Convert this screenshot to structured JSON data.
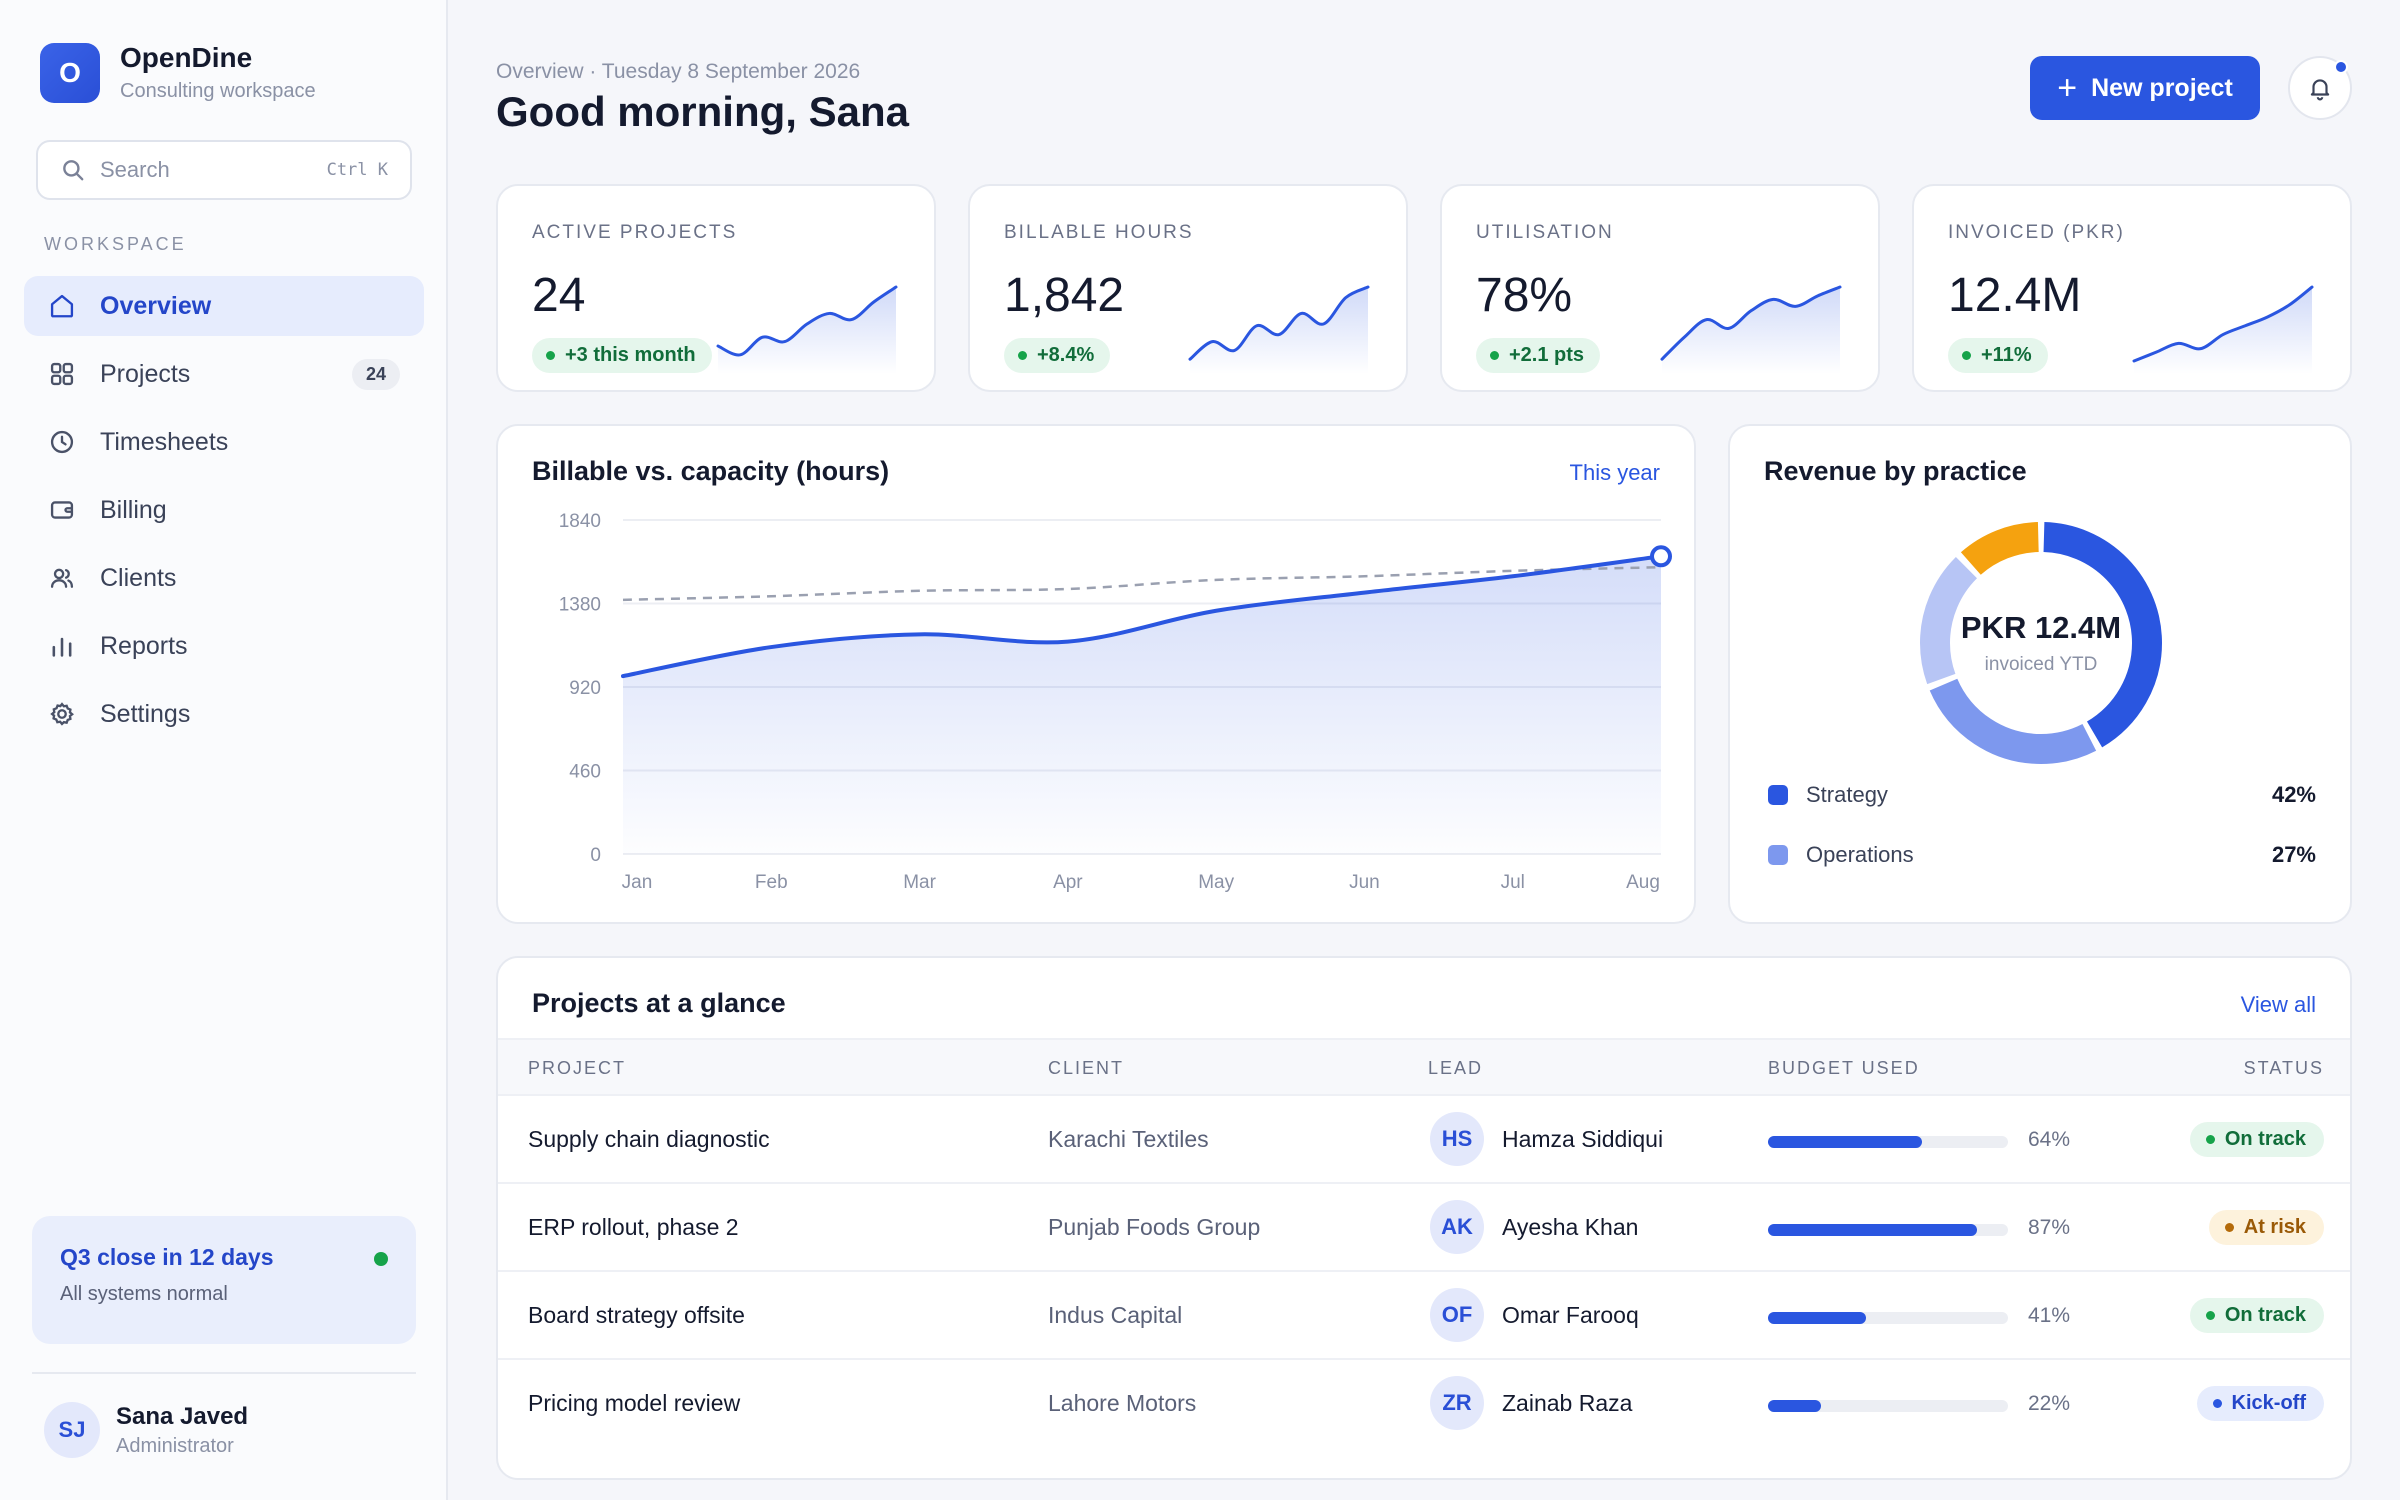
{
  "brand": {
    "name": "OpenDine",
    "subtitle": "Consulting workspace",
    "logo_letter": "O"
  },
  "search": {
    "placeholder": "Search",
    "shortcut": "Ctrl K"
  },
  "sidebar": {
    "section_label": "WORKSPACE",
    "items": [
      {
        "label": "Overview",
        "icon": "home-icon",
        "active": true
      },
      {
        "label": "Projects",
        "icon": "grid-icon",
        "badge": "24"
      },
      {
        "label": "Timesheets",
        "icon": "clock-icon"
      },
      {
        "label": "Billing",
        "icon": "wallet-icon"
      },
      {
        "label": "Clients",
        "icon": "users-icon"
      },
      {
        "label": "Reports",
        "icon": "bar-chart-icon"
      },
      {
        "label": "Settings",
        "icon": "gear-icon"
      }
    ],
    "status_card": {
      "title": "Q3 close in 12 days",
      "subtitle": "All systems normal",
      "dot_color": "#16a34a"
    },
    "user": {
      "initials": "SJ",
      "name": "Sana Javed",
      "role": "Administrator"
    }
  },
  "header": {
    "breadcrumb": "Overview · Tuesday 8 September 2026",
    "greeting": "Good morning, Sana",
    "new_project_label": "New project"
  },
  "kpis": [
    {
      "label": "ACTIVE PROJECTS",
      "value": "24",
      "delta": "+3 this month",
      "trend": [
        0.25,
        0.15,
        0.35,
        0.3,
        0.5,
        0.62,
        0.55,
        0.75,
        0.92
      ]
    },
    {
      "label": "BILLABLE HOURS",
      "value": "1,842",
      "delta": "+8.4%",
      "trend": [
        0.1,
        0.3,
        0.2,
        0.48,
        0.38,
        0.62,
        0.5,
        0.8,
        0.92
      ]
    },
    {
      "label": "UTILISATION",
      "value": "78%",
      "delta": "+2.1 pts",
      "trend": [
        0.1,
        0.35,
        0.55,
        0.45,
        0.65,
        0.78,
        0.7,
        0.82,
        0.92
      ]
    },
    {
      "label": "INVOICED (PKR)",
      "value": "12.4M",
      "delta": "+11%",
      "trend": [
        0.08,
        0.18,
        0.28,
        0.22,
        0.38,
        0.48,
        0.58,
        0.72,
        0.92
      ]
    }
  ],
  "chart_data": {
    "type": "area",
    "title": "Billable vs. capacity (hours)",
    "range_label": "This year",
    "categories": [
      "Jan",
      "Feb",
      "Mar",
      "Apr",
      "May",
      "Jun",
      "Jul",
      "Aug"
    ],
    "ylim": [
      0,
      1840
    ],
    "yticks": [
      "1840",
      "1380",
      "920",
      "460",
      "0"
    ],
    "grid": true,
    "series": [
      {
        "name": "",
        "style": "solid-area",
        "color": "#2a56e0",
        "values": [
          980,
          1140,
          1210,
          1170,
          1340,
          1440,
          1530,
          1640
        ]
      },
      {
        "name": "",
        "style": "dashed",
        "color": "#9aa0b0",
        "values": [
          1400,
          1420,
          1450,
          1460,
          1510,
          1530,
          1560,
          1580
        ]
      }
    ]
  },
  "revenue": {
    "title": "Revenue by practice",
    "center_value": "PKR 12.4M",
    "center_sub": "invoiced YTD",
    "segments": [
      {
        "name": "Strategy",
        "pct": 42,
        "color": "#2a56e0"
      },
      {
        "name": "Operations",
        "pct": 27,
        "color": "#7d98ee"
      },
      {
        "name": "",
        "pct": 19,
        "color": "#b7c5f5"
      },
      {
        "name": "",
        "pct": 12,
        "color": "#f5a20f"
      }
    ],
    "legend": [
      {
        "name": "Strategy",
        "value": "42%",
        "color": "#2a56e0"
      },
      {
        "name": "Operations",
        "value": "27%",
        "color": "#7d98ee"
      }
    ]
  },
  "projects": {
    "title": "Projects at a glance",
    "view_all": "View all",
    "columns": [
      "PROJECT",
      "CLIENT",
      "LEAD",
      "BUDGET USED",
      "STATUS"
    ],
    "rows": [
      {
        "project": "Supply chain diagnostic",
        "client": "Karachi Textiles",
        "lead_initials": "HS",
        "lead": "Hamza Siddiqui",
        "budget": 64,
        "budget_label": "64%",
        "status": "On track",
        "status_kind": "green"
      },
      {
        "project": "ERP rollout, phase 2",
        "client": "Punjab Foods Group",
        "lead_initials": "AK",
        "lead": "Ayesha Khan",
        "budget": 87,
        "budget_label": "87%",
        "status": "At risk",
        "status_kind": "amber"
      },
      {
        "project": "Board strategy offsite",
        "client": "Indus Capital",
        "lead_initials": "OF",
        "lead": "Omar Farooq",
        "budget": 41,
        "budget_label": "41%",
        "status": "On track",
        "status_kind": "green"
      },
      {
        "project": "Pricing model review",
        "client": "Lahore Motors",
        "lead_initials": "ZR",
        "lead": "Zainab Raza",
        "budget": 22,
        "budget_label": "22%",
        "status": "Kick-off",
        "status_kind": "blue"
      }
    ]
  },
  "colors": {
    "accent": "#2a56e0",
    "success": "#16a34a",
    "warning": "#b46b0a"
  }
}
